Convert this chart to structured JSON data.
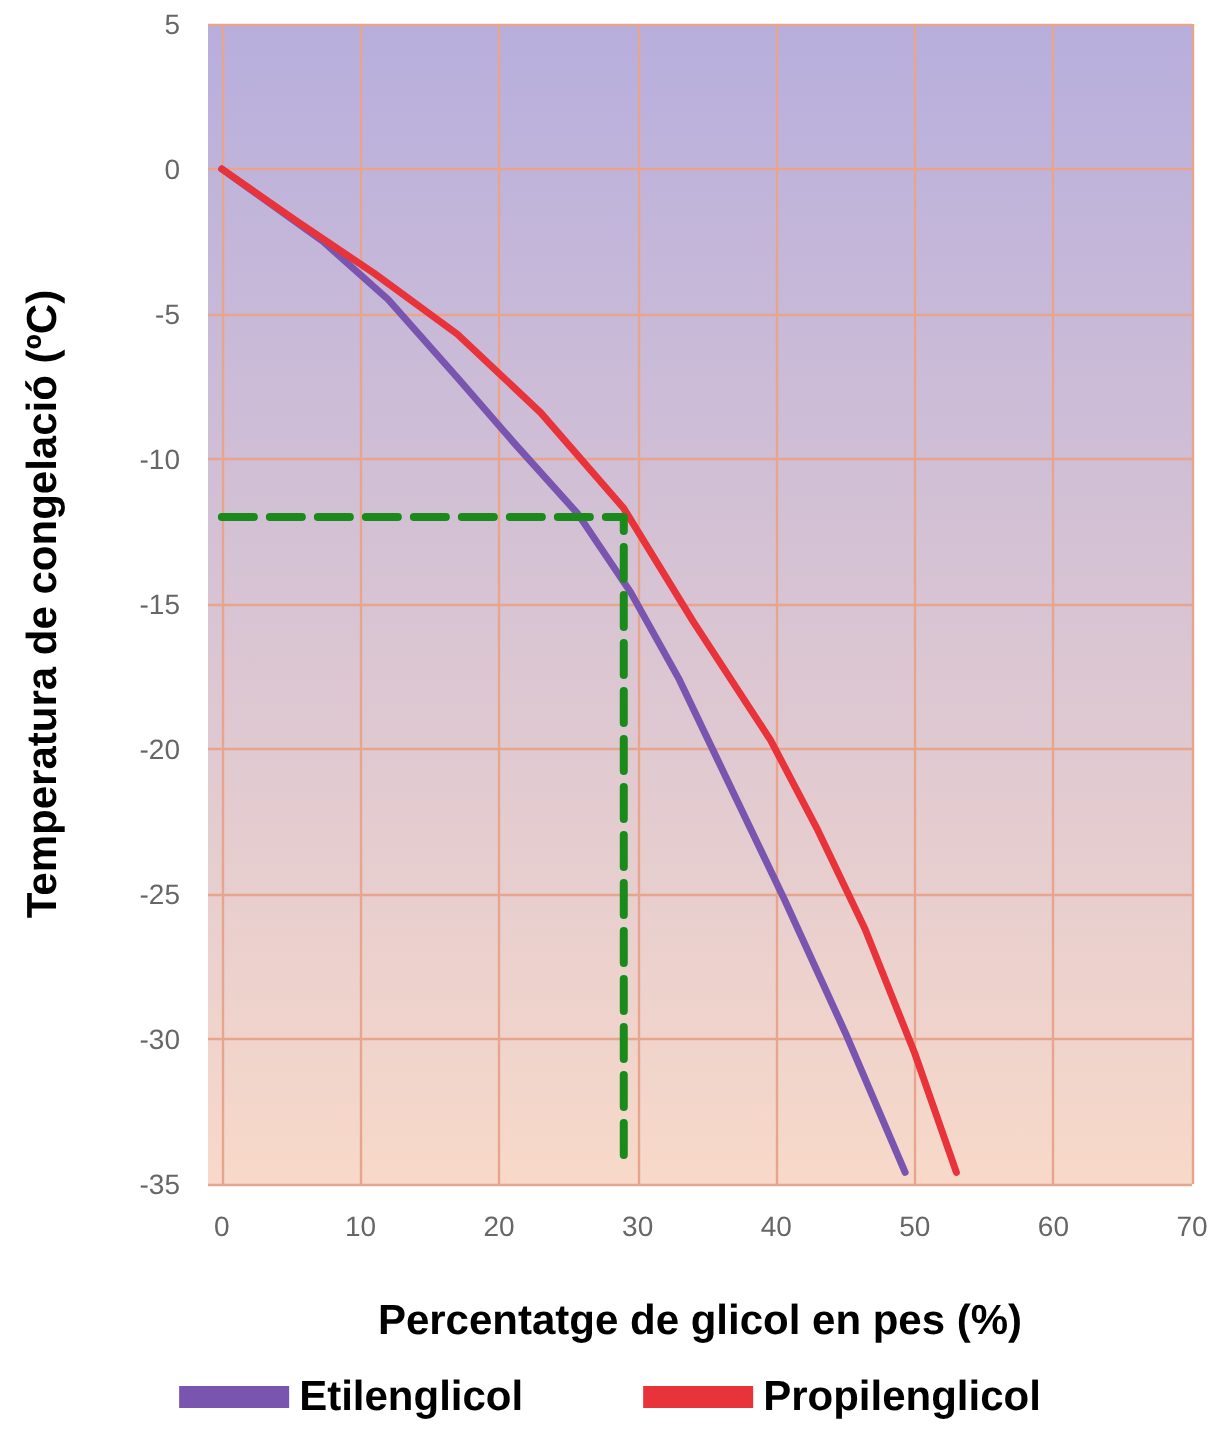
{
  "chart_data": {
    "type": "line",
    "xlabel": "Percentatge de glicol en pes (%)",
    "ylabel": "Temperatura de congelació (ºC)",
    "xlim": [
      -1,
      70
    ],
    "xticks": [
      0,
      10,
      20,
      30,
      40,
      50,
      60,
      70
    ],
    "ylim": [
      -35,
      5
    ],
    "yticks": [
      -35,
      -30,
      -25,
      -20,
      -15,
      -10,
      -5,
      0,
      5
    ],
    "grid": true,
    "legend": "bottom",
    "marker": "none",
    "series": [
      {
        "name": "Etilenglicol",
        "color": "#7a55b0",
        "x": [
          0,
          7.3,
          12,
          17,
          21,
          25.7,
          29.5,
          33,
          36.7,
          40.6,
          45,
          49.3
        ],
        "values": [
          0,
          -2.5,
          -4.5,
          -7.2,
          -9.4,
          -11.9,
          -14.6,
          -17.6,
          -21.3,
          -25.2,
          -29.8,
          -34.6
        ]
      },
      {
        "name": "Propilenglicol",
        "color": "#e8333a",
        "x": [
          0,
          5.4,
          11,
          17,
          23,
          29,
          34,
          39.6,
          43,
          46.4,
          50,
          53
        ],
        "values": [
          0,
          -1.8,
          -3.6,
          -5.7,
          -8.4,
          -11.7,
          -15.6,
          -19.7,
          -22.8,
          -26.2,
          -30.5,
          -34.6
        ]
      },
      {
        "color": "#1a8a1a",
        "line_style": "dashed",
        "x": [
          0,
          29,
          29
        ],
        "values": [
          -12,
          -12,
          -34
        ]
      }
    ]
  }
}
